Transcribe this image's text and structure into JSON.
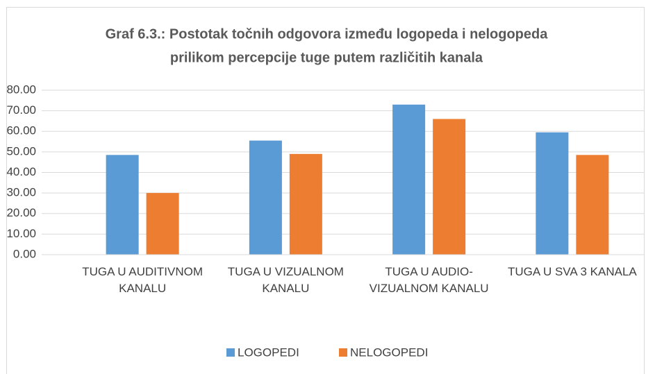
{
  "chart_data": {
    "type": "bar",
    "title": [
      "Graf 6.3.: Postotak točnih odgovora između logopeda i nelogopeda",
      "prilikom percepcije tuge putem različitih kanala"
    ],
    "categories": [
      "TUGA U AUDITIVNOM KANALU",
      "TUGA U VIZUALNOM KANALU",
      "TUGA U AUDIO-VIZUALNOM KANALU",
      "TUGA U SVA 3 KANALA"
    ],
    "series": [
      {
        "name": "LOGOPEDI",
        "color": "#5b9bd5",
        "values": [
          48.5,
          55.5,
          73,
          59.5
        ]
      },
      {
        "name": "NELOGOPEDI",
        "color": "#ed7d31",
        "values": [
          30,
          49,
          66,
          48.5
        ]
      }
    ],
    "ylim": [
      0,
      80
    ],
    "yticks": [
      {
        "value": 0,
        "label": "0.00"
      },
      {
        "value": 10,
        "label": "10.00"
      },
      {
        "value": 20,
        "label": "20.00"
      },
      {
        "value": 30,
        "label": "30.00"
      },
      {
        "value": 40,
        "label": "40.00"
      },
      {
        "value": 50,
        "label": "50.00"
      },
      {
        "value": 60,
        "label": "60.00"
      },
      {
        "value": 70,
        "label": "70.00"
      },
      {
        "value": 80,
        "label": "80.00"
      }
    ],
    "grid": true,
    "legend": "bottom"
  }
}
